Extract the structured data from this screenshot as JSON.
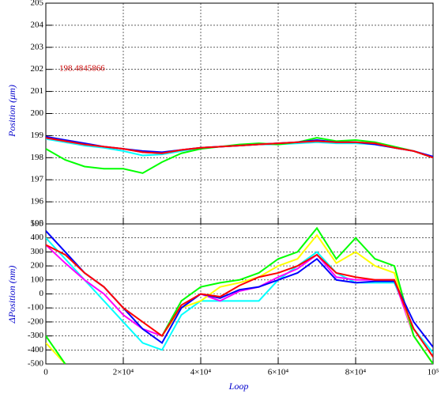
{
  "chart_data": [
    {
      "type": "line",
      "ylabel": "Position (μm)",
      "annotation": "198.4845866",
      "x": [
        0,
        5000,
        10000,
        15000,
        20000,
        25000,
        30000,
        35000,
        40000,
        45000,
        50000,
        55000,
        60000,
        65000,
        70000,
        75000,
        80000,
        85000,
        90000,
        95000,
        100000
      ],
      "xlim": [
        0,
        100000
      ],
      "xticks": [
        0,
        20000,
        40000,
        60000,
        80000,
        100000
      ],
      "ylim": [
        195,
        205
      ],
      "yticks": [
        195,
        196,
        197,
        198,
        199,
        200,
        201,
        202,
        203,
        204,
        205
      ],
      "grid": true,
      "series": [
        {
          "color": "#00ffff",
          "values": [
            198.85,
            198.7,
            198.55,
            198.45,
            198.3,
            198.1,
            198.15,
            198.3,
            198.45,
            198.5,
            198.55,
            198.6,
            198.6,
            198.65,
            198.7,
            198.65,
            198.65,
            198.6,
            198.45,
            198.3,
            198.0
          ]
        },
        {
          "color": "#ff00ff",
          "values": [
            198.9,
            198.75,
            198.6,
            198.5,
            198.4,
            198.25,
            198.2,
            198.35,
            198.45,
            198.5,
            198.55,
            198.6,
            198.65,
            198.7,
            198.75,
            198.7,
            198.7,
            198.65,
            198.45,
            198.3,
            198.0
          ]
        },
        {
          "color": "#00ff00",
          "values": [
            198.4,
            197.9,
            197.6,
            197.5,
            197.5,
            197.3,
            197.8,
            198.2,
            198.4,
            198.5,
            198.6,
            198.65,
            198.6,
            198.7,
            198.9,
            198.75,
            198.8,
            198.7,
            198.5,
            198.3,
            198.0
          ]
        },
        {
          "color": "#0000ff",
          "values": [
            198.95,
            198.8,
            198.65,
            198.5,
            198.4,
            198.3,
            198.25,
            198.35,
            198.45,
            198.5,
            198.55,
            198.6,
            198.65,
            198.7,
            198.8,
            198.7,
            198.7,
            198.6,
            198.45,
            198.3,
            198.05
          ]
        },
        {
          "color": "#ff0000",
          "values": [
            198.9,
            198.75,
            198.6,
            198.5,
            198.4,
            198.25,
            198.2,
            198.35,
            198.45,
            198.5,
            198.55,
            198.6,
            198.65,
            198.7,
            198.75,
            198.7,
            198.7,
            198.65,
            198.45,
            198.3,
            198.0
          ]
        }
      ]
    },
    {
      "type": "line",
      "ylabel": "ΔPosition (nm)",
      "xlabel": "Loop",
      "x": [
        0,
        5000,
        10000,
        15000,
        20000,
        25000,
        30000,
        35000,
        40000,
        45000,
        50000,
        55000,
        60000,
        65000,
        70000,
        75000,
        80000,
        85000,
        90000,
        95000,
        100000
      ],
      "xlim": [
        0,
        100000
      ],
      "xticks": [
        0,
        {
          "value": 20000,
          "label": "2×10⁴"
        },
        {
          "value": 40000,
          "label": "4×10⁴"
        },
        {
          "value": 60000,
          "label": "6×10⁴"
        },
        {
          "value": 80000,
          "label": "8×10⁴"
        },
        {
          "value": 100000,
          "label": "10⁵"
        }
      ],
      "ylim": [
        -500,
        500
      ],
      "yticks": [
        -500,
        -400,
        -300,
        -200,
        -100,
        0,
        100,
        200,
        300,
        400,
        500
      ],
      "grid": true,
      "series": [
        {
          "color": "#00ffff",
          "values": [
            400,
            250,
            100,
            -50,
            -200,
            -350,
            -400,
            -150,
            -50,
            -50,
            -50,
            -50,
            100,
            200,
            300,
            150,
            80,
            80,
            80,
            -250,
            -420
          ]
        },
        {
          "color": "#ff00ff",
          "values": [
            350,
            220,
            100,
            0,
            -150,
            -250,
            -300,
            -100,
            0,
            -50,
            20,
            50,
            120,
            180,
            280,
            120,
            100,
            100,
            100,
            -300,
            -500
          ]
        },
        {
          "color": "#ffff00",
          "values": [
            -350,
            -500,
            null,
            null,
            null,
            null,
            -300,
            -100,
            -50,
            50,
            80,
            120,
            200,
            250,
            420,
            220,
            300,
            200,
            150,
            -300,
            -500
          ]
        },
        {
          "color": "#00ff00",
          "values": [
            -300,
            -500,
            null,
            null,
            null,
            null,
            -300,
            -50,
            50,
            80,
            100,
            150,
            250,
            300,
            470,
            250,
            400,
            250,
            200,
            -300,
            -500
          ]
        },
        {
          "color": "#0000ff",
          "values": [
            450,
            300,
            150,
            50,
            -100,
            -250,
            -350,
            -100,
            0,
            -30,
            30,
            50,
            100,
            150,
            250,
            100,
            80,
            90,
            90,
            -200,
            -380
          ]
        },
        {
          "color": "#ff0000",
          "values": [
            350,
            280,
            150,
            50,
            -100,
            -200,
            -300,
            -80,
            0,
            -20,
            60,
            120,
            150,
            200,
            280,
            150,
            120,
            100,
            100,
            -250,
            -450
          ]
        }
      ]
    }
  ]
}
